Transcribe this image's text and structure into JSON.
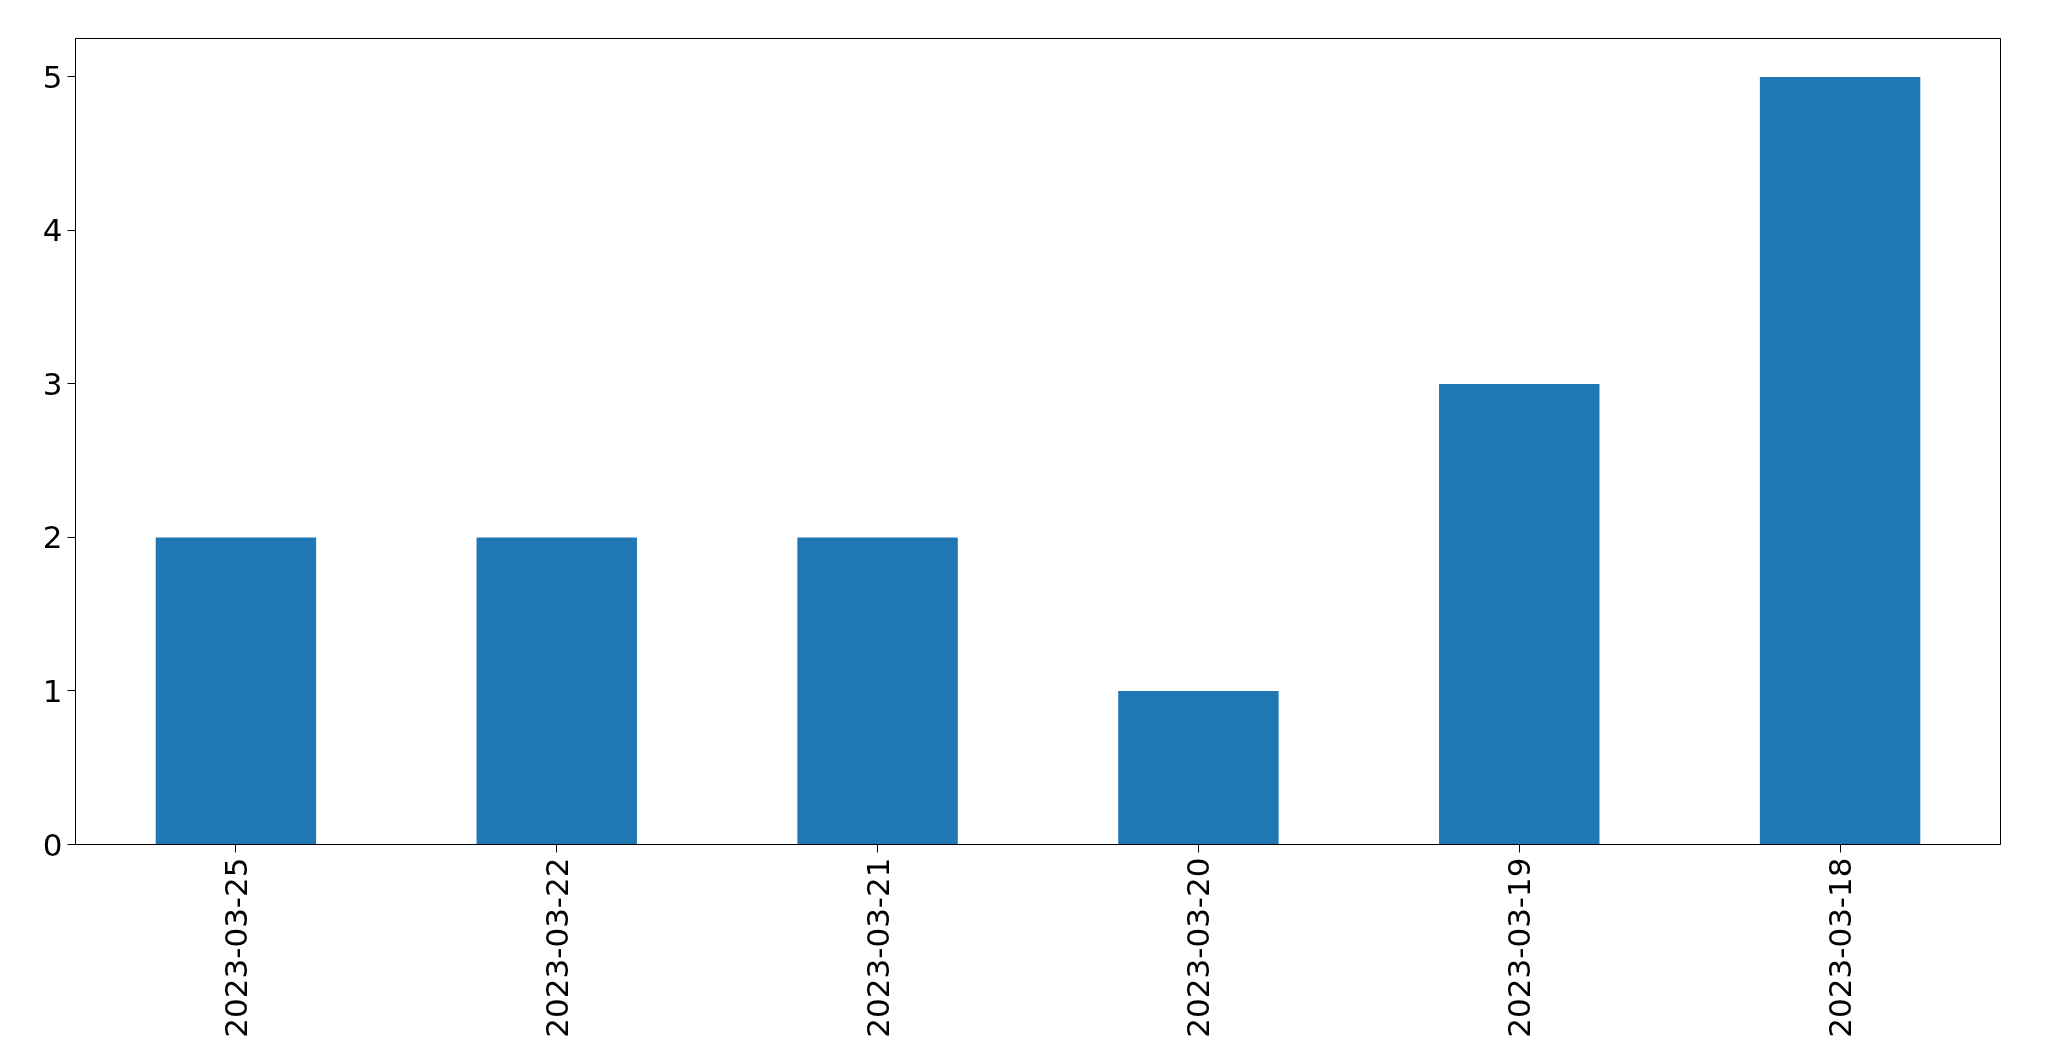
{
  "chart_data": {
    "type": "bar",
    "categories": [
      "2023-03-25",
      "2023-03-22",
      "2023-03-21",
      "2023-03-20",
      "2023-03-19",
      "2023-03-18"
    ],
    "values": [
      2,
      2,
      2,
      1,
      3,
      5
    ],
    "color": "#1f77b4",
    "ylim": [
      0,
      5.25
    ],
    "yticks": [
      0,
      1,
      2,
      3,
      4,
      5
    ],
    "grid": false
  }
}
